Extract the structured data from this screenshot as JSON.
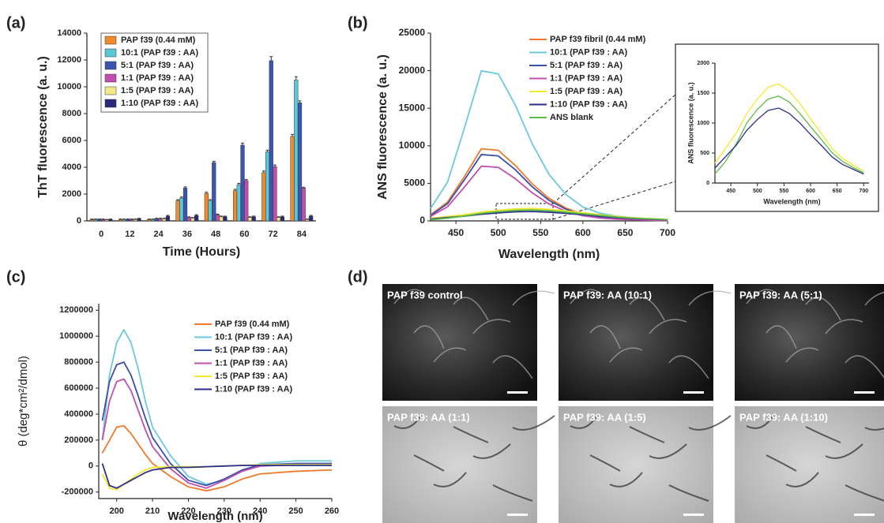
{
  "panel_labels": [
    "(a)",
    "(b)",
    "(c)",
    "(d)"
  ],
  "chart_data": [
    {
      "type": "bar",
      "x_label": "Time (Hours)",
      "y_label": "ThT fluorescence (a. u.)",
      "categories": [
        "0",
        "12",
        "24",
        "36",
        "48",
        "60",
        "72",
        "84"
      ],
      "ylim": [
        0,
        14000
      ],
      "yticks": [
        0,
        2000,
        4000,
        6000,
        8000,
        10000,
        12000,
        14000
      ],
      "series": [
        {
          "name": "PAP f39 (0.44 mM)",
          "color": "#f08a2c",
          "values": [
            100,
            100,
            100,
            1500,
            2050,
            2250,
            3600,
            6300
          ],
          "errors": [
            40,
            40,
            40,
            80,
            90,
            100,
            120,
            150
          ]
        },
        {
          "name": "10:1 (PAP f39 : AA)",
          "color": "#5bc8d8",
          "values": [
            100,
            100,
            100,
            1700,
            1500,
            2700,
            5150,
            10500
          ],
          "errors": [
            40,
            40,
            40,
            80,
            90,
            100,
            120,
            250
          ]
        },
        {
          "name": "5:1   (PAP f39 : AA)",
          "color": "#3a56b0",
          "values": [
            100,
            100,
            150,
            2450,
            4350,
            5650,
            11950,
            8800
          ],
          "errors": [
            40,
            40,
            50,
            90,
            100,
            150,
            300,
            150
          ]
        },
        {
          "name": "1:1   (PAP f39 : AA)",
          "color": "#c14fb0",
          "values": [
            100,
            100,
            150,
            250,
            450,
            3000,
            4050,
            2450
          ],
          "errors": [
            40,
            40,
            50,
            50,
            60,
            80,
            120,
            60
          ]
        },
        {
          "name": "1:5   (PAP f39 : AA)",
          "color": "#f3e98a",
          "values": [
            80,
            100,
            150,
            200,
            300,
            250,
            250,
            100
          ],
          "errors": [
            30,
            40,
            50,
            50,
            50,
            50,
            50,
            40
          ]
        },
        {
          "name": "1:10 (PAP f39 : AA)",
          "color": "#2a2a7a",
          "values": [
            100,
            150,
            350,
            400,
            300,
            300,
            300,
            350
          ],
          "errors": [
            40,
            40,
            60,
            60,
            50,
            50,
            50,
            60
          ]
        }
      ]
    },
    {
      "type": "line",
      "x_label": "Wavelength (nm)",
      "y_label": "ANS fluorescence (a. u.)",
      "x": [
        420,
        440,
        460,
        480,
        500,
        520,
        540,
        560,
        580,
        600,
        620,
        640,
        660,
        680,
        700
      ],
      "xlim": [
        420,
        700
      ],
      "xticks": [
        450,
        500,
        550,
        600,
        650,
        700
      ],
      "ylim": [
        0,
        25000
      ],
      "yticks": [
        0,
        5000,
        10000,
        15000,
        20000,
        25000
      ],
      "series": [
        {
          "name": "PAP f39 fibril (0.44 mM)",
          "color": "#f07a2a",
          "values": [
            800,
            2500,
            5900,
            9600,
            9400,
            7400,
            4950,
            3000,
            1700,
            900,
            500,
            300,
            200,
            100,
            50
          ]
        },
        {
          "name": "10:1 (PAP f39 : AA)",
          "color": "#6cc9dc",
          "values": [
            1650,
            5150,
            12360,
            19980,
            19570,
            15450,
            10300,
            6180,
            3500,
            1850,
            1030,
            620,
            410,
            210,
            100
          ]
        },
        {
          "name": "5:1   (PAP f39 : AA)",
          "color": "#3a4fa8",
          "values": [
            730,
            2280,
            5460,
            8830,
            8650,
            6830,
            4550,
            2730,
            1550,
            820,
            460,
            270,
            180,
            90,
            50
          ]
        },
        {
          "name": "1:1   (PAP f39 : AA)",
          "color": "#c04fae",
          "values": [
            600,
            1880,
            4500,
            7280,
            7130,
            5630,
            3750,
            2250,
            1280,
            680,
            380,
            230,
            150,
            80,
            40
          ]
        },
        {
          "name": "1:5   (PAP f39 : AA)",
          "color": "#f2e82e",
          "values": [
            330,
            580,
            830,
            1160,
            1400,
            1600,
            1650,
            1530,
            1320,
            1070,
            830,
            580,
            410,
            300,
            200
          ]
        },
        {
          "name": "1:10 (PAP f39 : AA)",
          "color": "#2b2f8c",
          "values": [
            250,
            440,
            630,
            880,
            1060,
            1210,
            1250,
            1160,
            1000,
            810,
            630,
            440,
            310,
            230,
            150
          ]
        },
        {
          "name": "ANS blank",
          "color": "#5cba47",
          "values": [
            150,
            360,
            650,
            1000,
            1230,
            1400,
            1450,
            1350,
            1160,
            940,
            730,
            510,
            360,
            260,
            170
          ]
        }
      ]
    },
    {
      "type": "line",
      "x_label": "Wavelength (nm)",
      "y_label": "ANS fluorescence (a. u.)",
      "x": [
        420,
        440,
        460,
        480,
        500,
        520,
        540,
        560,
        580,
        600,
        620,
        640,
        660,
        680,
        700
      ],
      "xlim": [
        420,
        710
      ],
      "xticks": [
        450,
        500,
        550,
        600,
        650,
        700
      ],
      "ylim": [
        0,
        2000
      ],
      "yticks": [
        0,
        500,
        1000,
        1500,
        2000
      ],
      "series": [
        {
          "color": "#f2e82e",
          "values": [
            330,
            580,
            830,
            1160,
            1400,
            1600,
            1650,
            1530,
            1320,
            1070,
            830,
            580,
            410,
            300,
            200
          ]
        },
        {
          "color": "#5cba47",
          "values": [
            150,
            360,
            650,
            1000,
            1230,
            1400,
            1450,
            1350,
            1160,
            940,
            730,
            510,
            360,
            260,
            170
          ]
        },
        {
          "color": "#2b2f8c",
          "values": [
            250,
            440,
            630,
            880,
            1060,
            1210,
            1250,
            1160,
            1000,
            810,
            630,
            440,
            310,
            230,
            150
          ]
        }
      ]
    },
    {
      "type": "line",
      "x_label": "Wavelength (nm)",
      "y_label": "θ (deg*cm²/dmol)",
      "x": [
        196,
        198,
        200,
        202,
        204,
        206,
        208,
        210,
        215,
        220,
        225,
        230,
        235,
        240,
        250,
        260
      ],
      "xlim": [
        195,
        260
      ],
      "xticks": [
        200,
        210,
        220,
        230,
        240,
        250,
        260
      ],
      "ylim": [
        -250000,
        1250000
      ],
      "yticks": [
        -200000,
        0,
        200000,
        400000,
        600000,
        800000,
        1000000,
        1200000
      ],
      "series": [
        {
          "name": "PAP f39 (0.44 mM)",
          "color": "#f07a2a",
          "values": [
            100000,
            200000,
            300000,
            310000,
            250000,
            170000,
            90000,
            20000,
            -80000,
            -160000,
            -190000,
            -160000,
            -100000,
            -60000,
            -40000,
            -30000
          ]
        },
        {
          "name": "10:1 (PAP f39 : AA)",
          "color": "#6cc9dc",
          "values": [
            200000,
            700000,
            950000,
            1050000,
            950000,
            750000,
            500000,
            300000,
            80000,
            -80000,
            -140000,
            -110000,
            -40000,
            20000,
            40000,
            40000
          ]
        },
        {
          "name": "5:1   (PAP f39 : AA)",
          "color": "#3a4fa8",
          "values": [
            350000,
            650000,
            780000,
            800000,
            700000,
            540000,
            370000,
            220000,
            20000,
            -110000,
            -150000,
            -100000,
            -30000,
            10000,
            20000,
            20000
          ]
        },
        {
          "name": "1:1   (PAP f39 : AA)",
          "color": "#c04fae",
          "values": [
            200000,
            500000,
            650000,
            670000,
            580000,
            430000,
            280000,
            150000,
            -20000,
            -130000,
            -170000,
            -110000,
            -40000,
            0,
            10000,
            10000
          ]
        },
        {
          "name": "1:5   (PAP f39 : AA)",
          "color": "#f2e82e",
          "values": [
            -60000,
            -170000,
            -180000,
            -140000,
            -100000,
            -60000,
            -30000,
            -10000,
            -5000,
            -5000,
            -5000,
            0,
            5000,
            10000,
            10000,
            10000
          ]
        },
        {
          "name": "1:10 (PAP f39 : AA)",
          "color": "#2b2f8c",
          "values": [
            20000,
            -150000,
            -170000,
            -140000,
            -110000,
            -80000,
            -50000,
            -30000,
            -10000,
            -10000,
            -5000,
            0,
            5000,
            5000,
            5000,
            5000
          ]
        }
      ]
    }
  ],
  "micrographs": [
    {
      "label": "PAP f39 control"
    },
    {
      "label": "PAP f39: AA (10:1)"
    },
    {
      "label": "PAP f39: AA (5:1)"
    },
    {
      "label": "PAP f39: AA (1:1)"
    },
    {
      "label": "PAP f39: AA (1:5)"
    },
    {
      "label": "PAP f39: AA (1:10)"
    }
  ]
}
